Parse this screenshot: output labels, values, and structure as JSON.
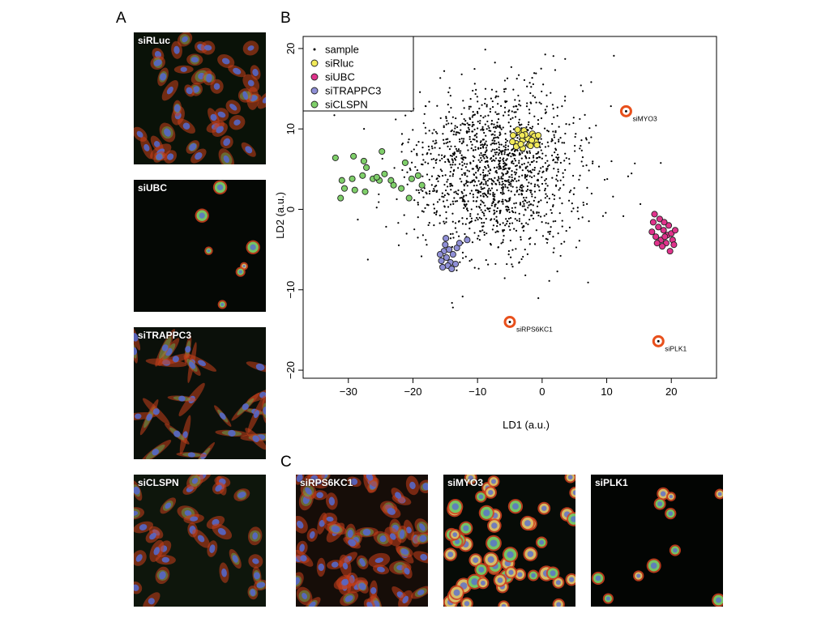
{
  "panels": {
    "a": "A",
    "b": "B",
    "c": "C"
  },
  "micrographs": [
    {
      "label": "siRLuc",
      "style": "dense",
      "cells": 46,
      "bg": "#0a1208"
    },
    {
      "label": "siUBC",
      "style": "sparse",
      "cells": 7,
      "bg": "#050805"
    },
    {
      "label": "siTRAPPC3",
      "style": "spindle",
      "cells": 30,
      "bg": "#0b100a"
    },
    {
      "label": "siCLSPN",
      "style": "dense",
      "cells": 34,
      "bg": "#0e160c"
    },
    {
      "label": "siRPS6KC1",
      "style": "packed",
      "cells": 70,
      "bg": "#160d08"
    },
    {
      "label": "siMYO3",
      "style": "round",
      "cells": 55,
      "bg": "#070b07"
    },
    {
      "label": "siPLK1",
      "style": "sparse",
      "cells": 11,
      "bg": "#030503"
    }
  ],
  "chart_data": {
    "type": "scatter",
    "xlabel": "LD1 (a.u.)",
    "ylabel": "LD2 (a.u.)",
    "xlim": [
      -37,
      27
    ],
    "ylim": [
      -21,
      21.5
    ],
    "xticks": [
      -30,
      -20,
      -10,
      0,
      10,
      20
    ],
    "yticks": [
      -20,
      -10,
      0,
      10,
      20
    ],
    "legend_position": "top-left",
    "legend": [
      {
        "label": "sample",
        "color": "#000000",
        "marker": "dot"
      },
      {
        "label": "siRluc",
        "color": "#f2ea5a",
        "marker": "circle"
      },
      {
        "label": "siUBC",
        "color": "#e0338c",
        "marker": "circle"
      },
      {
        "label": "siTRAPPC3",
        "color": "#8f8fd6",
        "marker": "circle"
      },
      {
        "label": "siCLSPN",
        "color": "#7fcf6a",
        "marker": "circle"
      }
    ],
    "sample_cloud": {
      "count": 1500,
      "center": [
        -7,
        5
      ],
      "spread": [
        6.5,
        5.0
      ]
    },
    "series": [
      {
        "name": "siRluc",
        "color": "#f2ea5a",
        "points": [
          [
            -4.5,
            9.2
          ],
          [
            -4,
            8.2
          ],
          [
            -3.5,
            9.6
          ],
          [
            -3,
            8.6
          ],
          [
            -2.5,
            9.0
          ],
          [
            -2,
            8.0
          ],
          [
            -1.5,
            9.4
          ],
          [
            -1,
            8.4
          ],
          [
            -4,
            7.8
          ],
          [
            -3,
            7.6
          ],
          [
            -2.2,
            8.8
          ],
          [
            -1.2,
            9.1
          ],
          [
            -3.8,
            9.9
          ],
          [
            -2.8,
            9.8
          ],
          [
            -1.8,
            7.9
          ],
          [
            -0.8,
            8.0
          ],
          [
            -4.6,
            8.4
          ],
          [
            -3.3,
            8.1
          ],
          [
            -2.6,
            9.3
          ],
          [
            -1.6,
            8.6
          ],
          [
            -0.6,
            9.2
          ],
          [
            -3.1,
            9.2
          ]
        ]
      },
      {
        "name": "siUBC",
        "color": "#e0338c",
        "points": [
          [
            17.2,
            -1.6
          ],
          [
            18,
            -2.2
          ],
          [
            18.8,
            -2.6
          ],
          [
            19.4,
            -3.2
          ],
          [
            17.6,
            -3.4
          ],
          [
            18.4,
            -3.8
          ],
          [
            19.2,
            -4.2
          ],
          [
            20,
            -3.0
          ],
          [
            17,
            -2.8
          ],
          [
            18.2,
            -1.2
          ],
          [
            19.6,
            -2.0
          ],
          [
            18.6,
            -4.6
          ],
          [
            20.2,
            -3.8
          ],
          [
            17.8,
            -4.2
          ],
          [
            19,
            -3.4
          ],
          [
            20.6,
            -2.6
          ],
          [
            17.4,
            -0.6
          ],
          [
            19.8,
            -5.2
          ],
          [
            18.9,
            -1.6
          ],
          [
            20.4,
            -4.4
          ]
        ]
      },
      {
        "name": "siTRAPPC3",
        "color": "#8f8fd6",
        "points": [
          [
            -15.2,
            -5.2
          ],
          [
            -14.8,
            -6.0
          ],
          [
            -14.2,
            -6.6
          ],
          [
            -15.6,
            -6.4
          ],
          [
            -14.6,
            -7.0
          ],
          [
            -13.8,
            -5.6
          ],
          [
            -15.0,
            -4.4
          ],
          [
            -13.4,
            -6.8
          ],
          [
            -14.4,
            -5.0
          ],
          [
            -15.8,
            -5.6
          ],
          [
            -13.2,
            -4.8
          ],
          [
            -14.9,
            -3.6
          ],
          [
            -12.8,
            -4.2
          ],
          [
            -11.6,
            -3.8
          ],
          [
            -14.0,
            -7.4
          ],
          [
            -15.4,
            -7.2
          ]
        ]
      },
      {
        "name": "siCLSPN",
        "color": "#7fcf6a",
        "points": [
          [
            -32,
            6.4
          ],
          [
            -29.2,
            6.6
          ],
          [
            -24.8,
            7.2
          ],
          [
            -27.6,
            6.0
          ],
          [
            -31.0,
            3.6
          ],
          [
            -29.4,
            3.8
          ],
          [
            -27.2,
            5.2
          ],
          [
            -26.2,
            3.8
          ],
          [
            -24.4,
            4.4
          ],
          [
            -25.2,
            3.6
          ],
          [
            -23.4,
            3.6
          ],
          [
            -21.2,
            5.8
          ],
          [
            -20.2,
            3.8
          ],
          [
            -19.2,
            4.2
          ],
          [
            -18.6,
            3.0
          ],
          [
            -31.2,
            1.4
          ],
          [
            -30.6,
            2.6
          ],
          [
            -29.0,
            2.4
          ],
          [
            -27.4,
            2.2
          ],
          [
            -25.6,
            4.0
          ],
          [
            -23.0,
            3.0
          ],
          [
            -21.8,
            2.6
          ],
          [
            -20.6,
            1.4
          ],
          [
            -27.8,
            4.2
          ]
        ]
      }
    ],
    "outliers": [
      {
        "label": "siMYO3",
        "x": 13,
        "y": 12.2
      },
      {
        "label": "siRPS6KC1",
        "x": -5,
        "y": -14
      },
      {
        "label": "siPLK1",
        "x": 18,
        "y": -16.4
      }
    ]
  }
}
